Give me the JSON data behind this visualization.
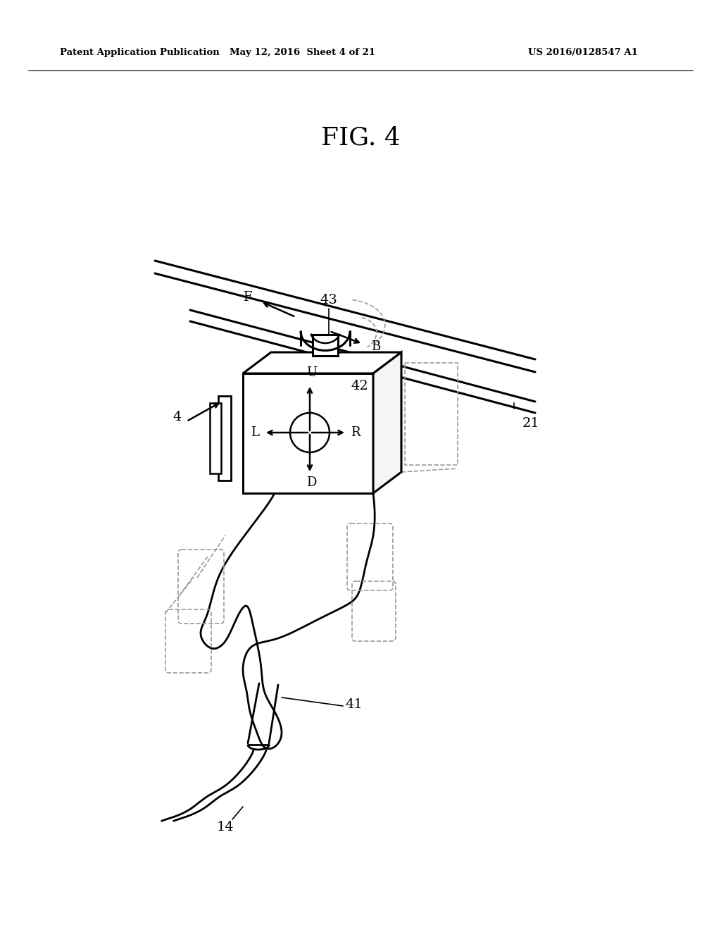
{
  "header_left": "Patent Application Publication",
  "header_center": "May 12, 2016  Sheet 4 of 21",
  "header_right": "US 2016/0128547 A1",
  "figure_title": "FIG. 4",
  "background_color": "#ffffff",
  "line_color": "#000000",
  "dashed_color": "#999999"
}
